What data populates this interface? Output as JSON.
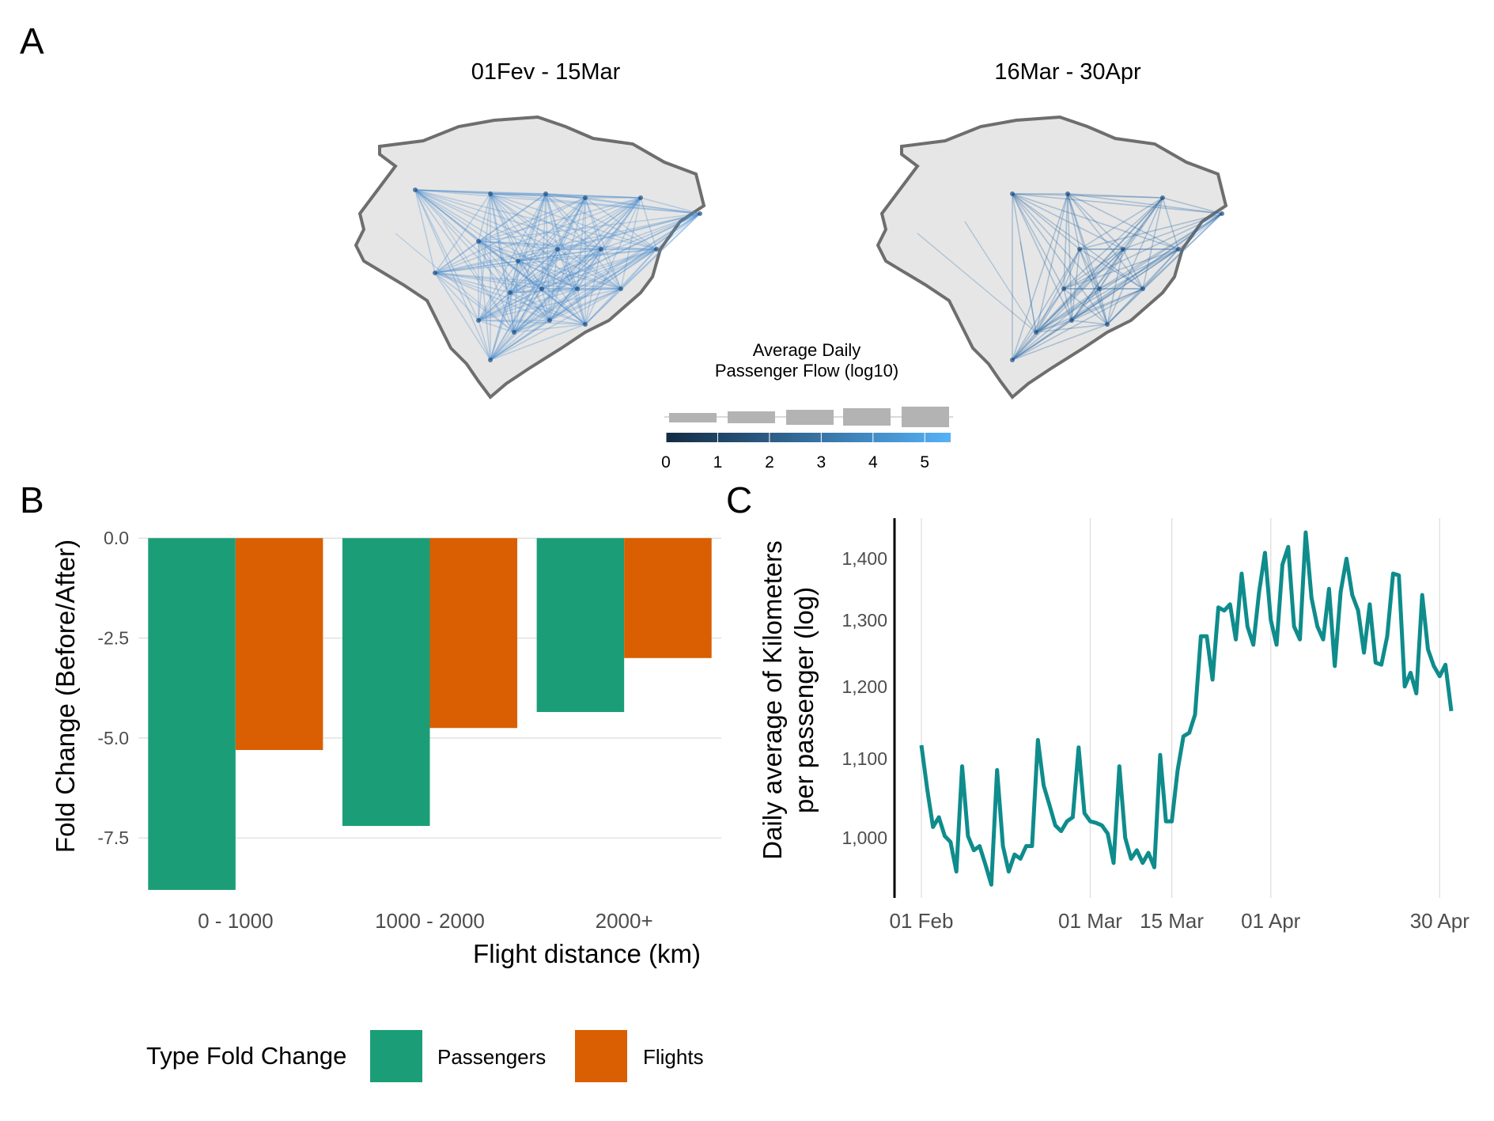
{
  "panels": {
    "a_label": "A",
    "b_label": "B",
    "c_label": "C"
  },
  "chart_data": [
    {
      "type": "map",
      "maps": [
        {
          "title": "01Fev - 15Mar"
        },
        {
          "title": "16Mar - 30Apr"
        }
      ],
      "legend": {
        "title_line1": "Average Daily",
        "title_line2": "Passenger Flow (log10)",
        "ticks": [
          "0",
          "1",
          "2",
          "3",
          "4",
          "5"
        ],
        "range": [
          0,
          5.5
        ],
        "colors": {
          "low": "#132b43",
          "high": "#56b1f7"
        }
      }
    },
    {
      "type": "bar",
      "xlabel": "Flight distance (km)",
      "ylabel": "Fold Change (Before/After)",
      "categories": [
        "0 - 1000",
        "1000 - 2000",
        "2000+"
      ],
      "series": [
        {
          "name": "Passengers",
          "color": "#1b9e77",
          "values": [
            -8.8,
            -7.2,
            -4.35
          ]
        },
        {
          "name": "Flights",
          "color": "#d95f02",
          "values": [
            -5.3,
            -4.75,
            -3.0
          ]
        }
      ],
      "ylim": [
        -9.0,
        0.4
      ],
      "yticks": [
        0.0,
        -2.5,
        -5.0,
        -7.5
      ],
      "ytick_labels": [
        "0.0",
        "-2.5",
        "-5.0",
        "-7.5"
      ],
      "grid": true,
      "legend": {
        "title": "Type Fold Change",
        "position": "bottom"
      }
    },
    {
      "type": "line",
      "ylabel_line1": "Daily average of Kilometers",
      "ylabel_line2": "per passenger (log)",
      "x_ticks": [
        {
          "label": "01 Feb",
          "day": 0
        },
        {
          "label": "01 Mar",
          "day": 29
        },
        {
          "label": "15 Mar",
          "day": 43
        },
        {
          "label": "01 Apr",
          "day": 60
        },
        {
          "label": "30 Apr",
          "day": 89
        }
      ],
      "y_scale": "log",
      "yticks": [
        1000,
        1100,
        1200,
        1300,
        1400
      ],
      "ytick_labels": [
        "1,000",
        "1,100",
        "1,200",
        "1,300",
        "1,400"
      ],
      "ylim": [
        930,
        1470
      ],
      "x_start": "2020-02-01",
      "x_end": "2020-04-30",
      "color": "#0f8c8c",
      "y": [
        1118,
        1060,
        1013,
        1025,
        1002,
        995,
        960,
        1090,
        1002,
        985,
        990,
        968,
        945,
        1085,
        990,
        960,
        980,
        975,
        990,
        990,
        1125,
        1065,
        1040,
        1015,
        1008,
        1020,
        1025,
        1115,
        1030,
        1020,
        1018,
        1015,
        1005,
        970,
        1090,
        1000,
        975,
        985,
        970,
        982,
        965,
        1105,
        1020,
        1020,
        1085,
        1130,
        1135,
        1160,
        1275,
        1275,
        1210,
        1320,
        1315,
        1325,
        1270,
        1375,
        1290,
        1262,
        1345,
        1410,
        1300,
        1262,
        1390,
        1420,
        1290,
        1270,
        1445,
        1335,
        1290,
        1270,
        1350,
        1230,
        1345,
        1400,
        1340,
        1315,
        1250,
        1325,
        1235,
        1232,
        1275,
        1375,
        1372,
        1200,
        1220,
        1190,
        1340,
        1255,
        1230,
        1215,
        1232,
        1165
      ]
    }
  ]
}
